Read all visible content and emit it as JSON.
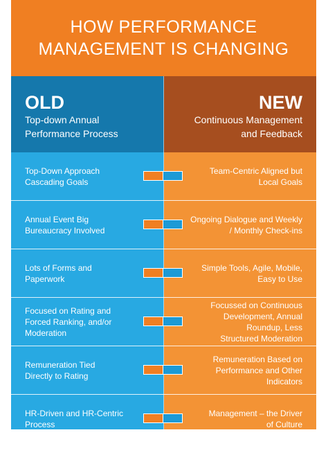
{
  "title": {
    "line1": "HOW PERFORMANCE",
    "line2": "MANAGEMENT IS CHANGING"
  },
  "old": {
    "heading": "OLD",
    "subtitle_line1": "Top-down Annual",
    "subtitle_line2": "Performance Process"
  },
  "new": {
    "heading": "NEW",
    "subtitle_line1": "Continuous Management",
    "subtitle_line2": "and Feedback"
  },
  "rows": [
    {
      "old": [
        "Top-Down Approach",
        "Cascading Goals"
      ],
      "new": [
        "Team-Centric Aligned but",
        "Local Goals"
      ]
    },
    {
      "old": [
        "Annual Event Big",
        "Bureaucracy Involved"
      ],
      "new": [
        "Ongoing Dialogue and Weekly",
        "/ Monthly Check-ins"
      ]
    },
    {
      "old": [
        "Lots of Forms and",
        "Paperwork"
      ],
      "new": [
        "Simple Tools, Agile, Mobile,",
        "Easy to Use"
      ]
    },
    {
      "old": [
        "Focused on Rating and",
        "Forced Ranking, and/or",
        "Moderation"
      ],
      "new": [
        "Focussed on Continuous",
        "Development, Annual",
        "Roundup, Less",
        "Structured Moderation"
      ]
    },
    {
      "old": [
        "Remuneration Tied",
        "Directly to Rating"
      ],
      "new": [
        "Remuneration Based on",
        "Performance and Other",
        "Indicators"
      ]
    },
    {
      "old": [
        "HR-Driven and HR-Centric",
        "Process"
      ],
      "new": [
        "Management – the Driver",
        "of Culture"
      ]
    }
  ],
  "colors": {
    "title_band": "#f07f22",
    "old_header": "#1578ac",
    "new_header": "#a64e1f",
    "old_column": "#28a9e2",
    "new_column": "#f39335"
  }
}
